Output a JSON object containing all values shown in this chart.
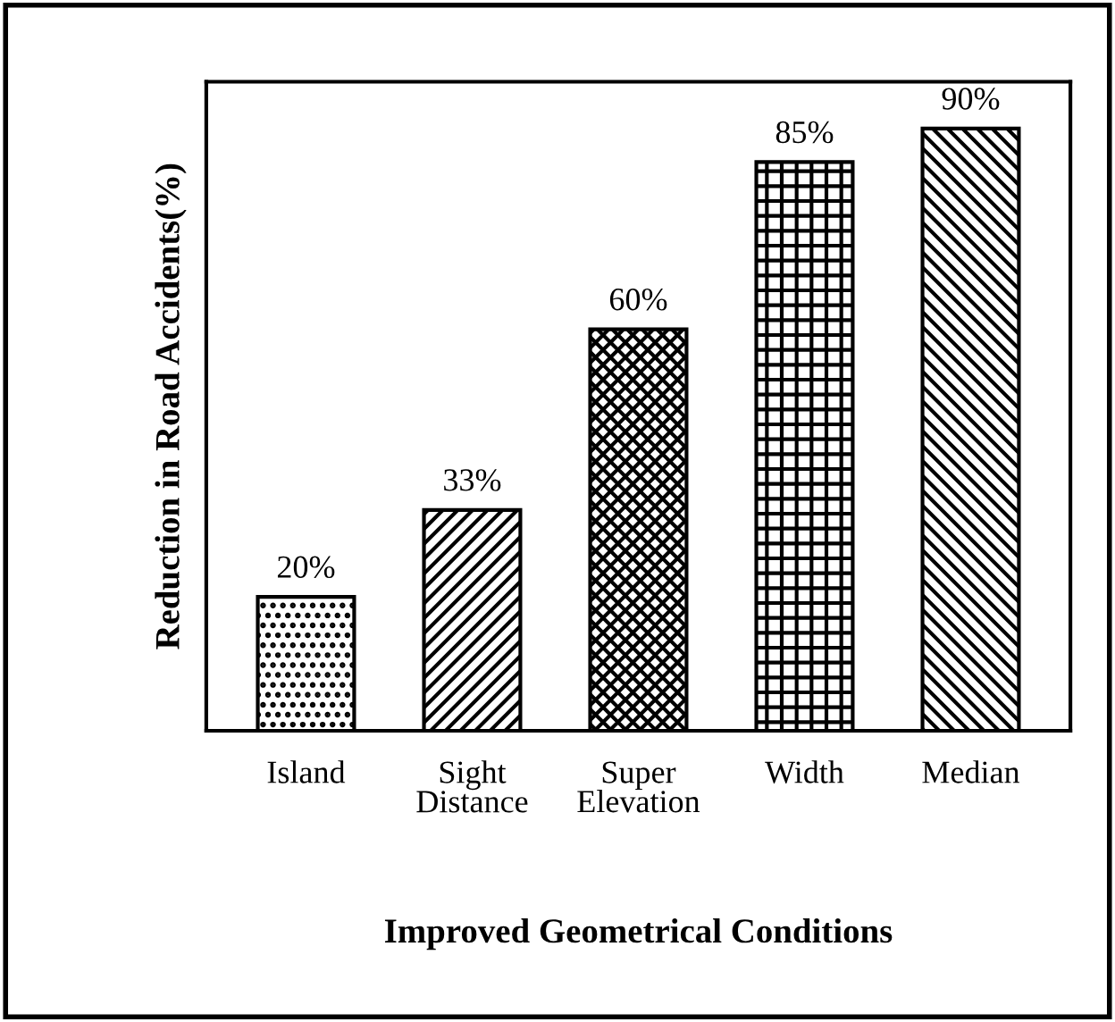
{
  "chart_data": {
    "type": "bar",
    "xlabel": "Improved Geometrical Conditions",
    "ylabel": "Reduction in Road Accidents(%)",
    "categories": [
      "Island",
      "Sight\nDistance",
      "Super\nElevation",
      "Width",
      "Median"
    ],
    "values": [
      20,
      33,
      60,
      85,
      90
    ],
    "value_labels": [
      "20%",
      "33%",
      "60%",
      "85%",
      "90%"
    ],
    "color": "#000000",
    "ylim": [
      0,
      97
    ],
    "grid": false,
    "legend": false
  }
}
